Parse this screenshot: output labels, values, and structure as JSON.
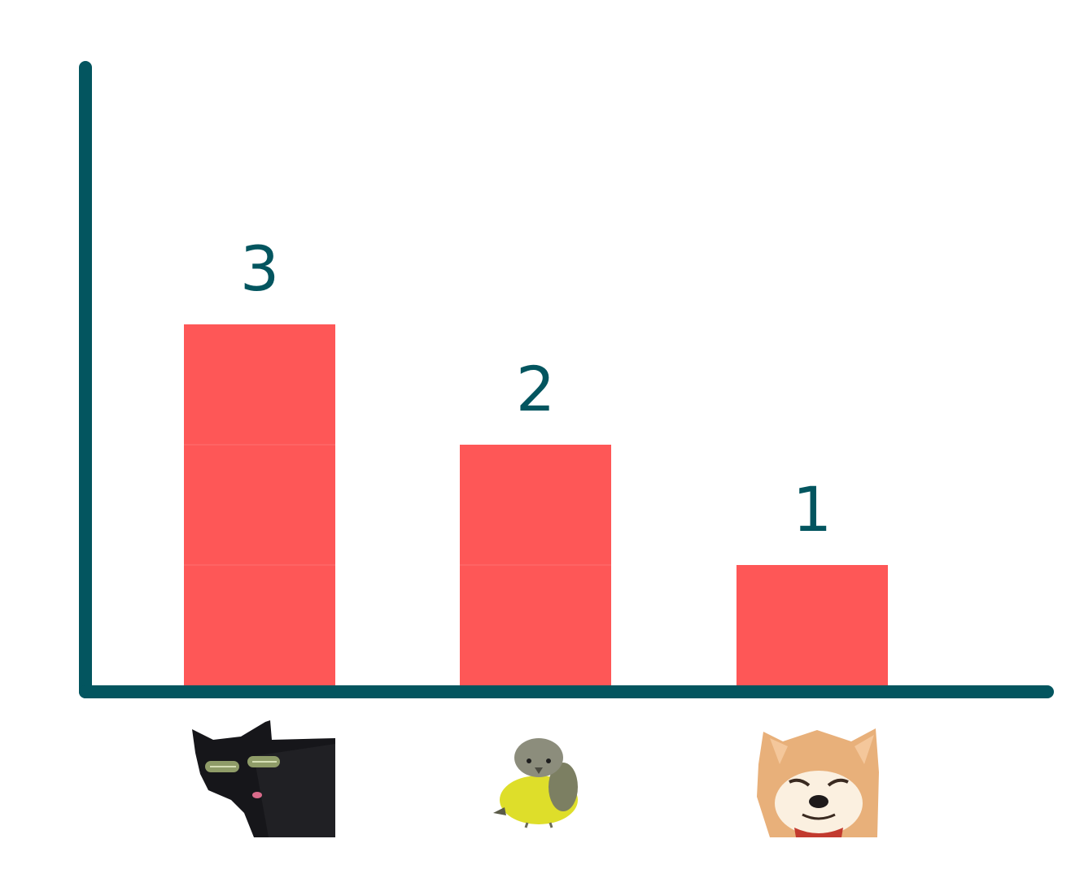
{
  "colors": {
    "axis": "#03555f",
    "bar": "#fe5757",
    "label": "#03555f"
  },
  "chart_data": {
    "type": "bar",
    "categories": [
      "cat-icon",
      "bird-icon",
      "dog-icon"
    ],
    "values": [
      3,
      2,
      1
    ],
    "data_labels": [
      "3",
      "2",
      "1"
    ],
    "title": "",
    "xlabel": "",
    "ylabel": "",
    "ylim": [
      0,
      5.2
    ],
    "grid": false,
    "bars_stacked_by_unit": true
  }
}
